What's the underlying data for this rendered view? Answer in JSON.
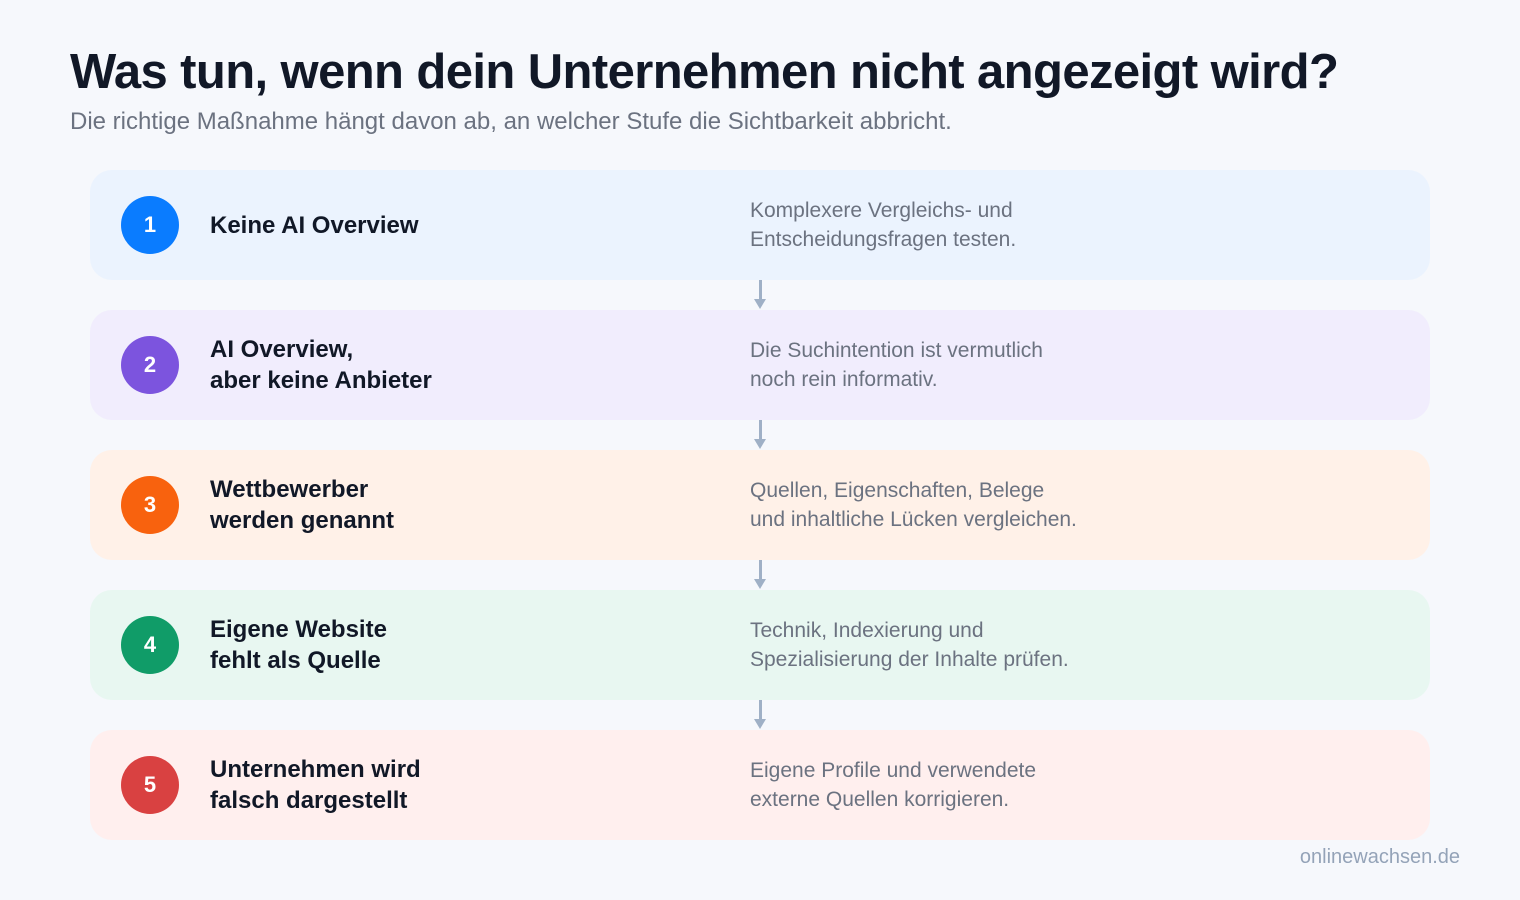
{
  "title": "Was tun, wenn dein Unternehmen nicht angezeigt wird?",
  "subtitle": "Die richtige Maßnahme hängt davon ab, an welcher Stufe die Sichtbarkeit abbricht.",
  "steps": [
    {
      "number": "1",
      "title": "Keine AI Overview",
      "description": "Komplexere Vergleichs- und\nEntscheidungsfragen testen.",
      "bg_color": "#ebf3fe",
      "badge_color": "#0a7cff"
    },
    {
      "number": "2",
      "title": "AI Overview,\naber keine Anbieter",
      "description": "Die Suchintention ist vermutlich\nnoch rein informativ.",
      "bg_color": "#f1edfd",
      "badge_color": "#7c54de"
    },
    {
      "number": "3",
      "title": "Wettbewerber\nwerden genannt",
      "description": "Quellen, Eigenschaften, Belege\nund inhaltliche Lücken vergleichen.",
      "bg_color": "#fff1e8",
      "badge_color": "#f8620e"
    },
    {
      "number": "4",
      "title": "Eigene Website\nfehlt als Quelle",
      "description": "Technik, Indexierung und\nSpezialisierung der Inhalte prüfen.",
      "bg_color": "#e8f7f1",
      "badge_color": "#109c68"
    },
    {
      "number": "5",
      "title": "Unternehmen wird\nfalsch dargestellt",
      "description": "Eigene Profile und verwendete\nexterne Quellen korrigieren.",
      "bg_color": "#ffefee",
      "badge_color": "#d94141"
    }
  ],
  "connector_color": "#9fb0c6",
  "footer": "onlinewachsen.de"
}
